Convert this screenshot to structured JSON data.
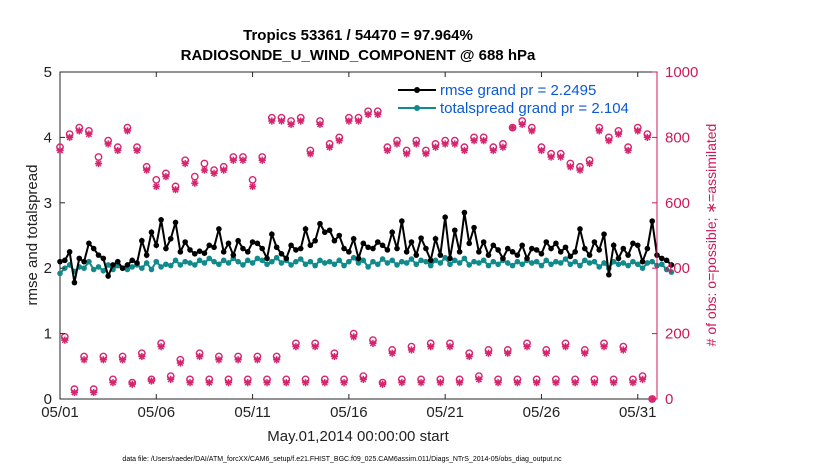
{
  "chart_data": {
    "type": "line",
    "title_line1": "Tropics 53361 / 54470 = 97.964%",
    "title_line2": "RADIOSONDE_U_WIND_COMPONENT @ 688 hPa",
    "xlabel": "May.01,2014 00:00:00 start",
    "ylabel_left": "rmse and totalspread",
    "ylabel_right": "# of obs: o=possible; ∗=assimilated",
    "xlim": [
      0,
      31
    ],
    "ylim_left": [
      0,
      5
    ],
    "ylim_right": [
      0,
      1000
    ],
    "x_tick_values": [
      0,
      5,
      10,
      15,
      20,
      25,
      30
    ],
    "x_tick_labels": [
      "05/01",
      "05/06",
      "05/11",
      "05/16",
      "05/21",
      "05/26",
      "05/31"
    ],
    "y_left_ticks": [
      "0",
      "1",
      "2",
      "3",
      "4",
      "5"
    ],
    "y_right_ticks": [
      "0",
      "200",
      "400",
      "600",
      "800",
      "1000"
    ],
    "colors": {
      "rmse": "#000000",
      "spread": "#108a8a",
      "obs": "#d6246e",
      "legend_text": "#0a5ad6"
    },
    "legend": [
      {
        "name": "rmse grand pr = 2.2495",
        "series": "rmse"
      },
      {
        "name": "totalspread grand pr = 2.104",
        "series": "spread"
      }
    ],
    "step_days": 0.25,
    "series": [
      {
        "name": "rmse",
        "axis": "left",
        "values": [
          2.1,
          2.12,
          2.25,
          1.78,
          2.15,
          2.1,
          2.38,
          2.3,
          2.2,
          2.15,
          1.88,
          2.05,
          2.1,
          2.0,
          2.05,
          2.12,
          2.08,
          2.42,
          2.2,
          2.55,
          2.35,
          2.74,
          2.3,
          2.45,
          2.7,
          2.25,
          2.4,
          2.28,
          2.22,
          2.26,
          2.23,
          2.35,
          2.32,
          2.6,
          2.25,
          2.38,
          2.2,
          2.42,
          2.3,
          2.25,
          2.4,
          2.38,
          2.3,
          2.15,
          2.52,
          2.32,
          2.22,
          2.15,
          2.35,
          2.28,
          2.3,
          2.6,
          2.35,
          2.42,
          2.68,
          2.55,
          2.58,
          2.42,
          2.5,
          2.3,
          2.25,
          2.45,
          2.15,
          2.38,
          2.32,
          2.3,
          2.4,
          2.35,
          2.28,
          2.55,
          2.3,
          2.72,
          2.25,
          2.4,
          2.2,
          2.46,
          2.3,
          2.12,
          2.45,
          2.2,
          2.78,
          2.15,
          2.58,
          2.25,
          2.85,
          2.38,
          2.62,
          2.25,
          2.4,
          2.2,
          2.35,
          2.28,
          2.15,
          2.3,
          2.25,
          2.2,
          2.35,
          2.15,
          2.3,
          2.28,
          2.22,
          2.4,
          2.3,
          2.38,
          2.25,
          2.32,
          2.18,
          2.25,
          2.6,
          2.3,
          2.2,
          2.4,
          2.28,
          2.52,
          1.9,
          2.35,
          2.15,
          2.3,
          2.2,
          2.38,
          2.35,
          2.1,
          2.3,
          2.72,
          2.2,
          2.15,
          2.12,
          2.05
        ]
      },
      {
        "name": "totalspread",
        "axis": "left",
        "values": [
          1.92,
          2.0,
          2.05,
          1.95,
          2.02,
          2.0,
          2.1,
          1.98,
          2.02,
          1.96,
          2.05,
          1.98,
          2.04,
          2.0,
          1.98,
          2.02,
          2.05,
          2.0,
          2.08,
          1.98,
          2.1,
          2.02,
          2.06,
          2.04,
          2.12,
          2.05,
          2.1,
          2.08,
          2.05,
          2.12,
          2.08,
          2.15,
          2.1,
          2.06,
          2.12,
          2.08,
          2.15,
          2.1,
          2.05,
          2.12,
          2.08,
          2.15,
          2.12,
          2.06,
          2.1,
          2.16,
          2.08,
          2.12,
          2.05,
          2.1,
          2.14,
          2.06,
          2.1,
          2.04,
          2.12,
          2.08,
          2.1,
          2.06,
          2.12,
          2.04,
          2.1,
          2.16,
          2.08,
          2.12,
          2.02,
          2.1,
          2.06,
          2.14,
          2.08,
          2.12,
          2.05,
          2.1,
          2.08,
          2.14,
          2.06,
          2.12,
          2.1,
          2.04,
          2.12,
          2.08,
          2.16,
          2.06,
          2.12,
          2.08,
          2.15,
          2.05,
          2.1,
          2.08,
          2.12,
          2.04,
          2.1,
          2.06,
          2.12,
          2.08,
          2.04,
          2.1,
          2.06,
          2.12,
          2.08,
          2.1,
          2.04,
          2.12,
          2.06,
          2.1,
          2.08,
          2.14,
          2.06,
          2.1,
          2.04,
          2.12,
          2.08,
          2.1,
          2.02,
          2.08,
          2.0,
          2.1,
          2.06,
          2.08,
          2.04,
          2.1,
          2.06,
          2.0,
          2.08,
          2.1,
          2.04,
          2.06,
          1.98,
          1.94
        ]
      }
    ],
    "obs_high": {
      "x": [
        0,
        0.5,
        1,
        1.5,
        2,
        2.5,
        3,
        3.5,
        4,
        4.5,
        5,
        5.5,
        6,
        6.5,
        7,
        7.5,
        8,
        8.5,
        9,
        9.5,
        10,
        10.5,
        11,
        11.5,
        12,
        12.5,
        13,
        13.5,
        14,
        14.5,
        15,
        15.5,
        16,
        16.5,
        17,
        17.5,
        18,
        18.5,
        19,
        19.5,
        20,
        20.5,
        21,
        21.5,
        22,
        22.5,
        23,
        23.5,
        24,
        24.5,
        25,
        25.5,
        26,
        26.5,
        27,
        27.5,
        28,
        28.5,
        29,
        29.5,
        30,
        30.5
      ],
      "possible": [
        770,
        810,
        830,
        820,
        740,
        790,
        770,
        830,
        770,
        710,
        670,
        690,
        650,
        730,
        680,
        720,
        700,
        710,
        740,
        740,
        670,
        740,
        860,
        860,
        850,
        860,
        760,
        850,
        780,
        800,
        860,
        860,
        880,
        880,
        770,
        790,
        760,
        790,
        760,
        780,
        790,
        790,
        770,
        800,
        800,
        770,
        780,
        830,
        850,
        830,
        770,
        750,
        750,
        720,
        710,
        730,
        830,
        800,
        820,
        770,
        830,
        810
      ],
      "assimilated": [
        760,
        800,
        820,
        810,
        720,
        780,
        760,
        820,
        760,
        700,
        650,
        680,
        640,
        720,
        660,
        700,
        690,
        700,
        730,
        730,
        650,
        730,
        850,
        850,
        840,
        850,
        750,
        840,
        770,
        790,
        850,
        850,
        870,
        870,
        760,
        780,
        750,
        780,
        750,
        770,
        780,
        780,
        760,
        790,
        790,
        760,
        770,
        830,
        840,
        820,
        760,
        740,
        740,
        710,
        700,
        720,
        820,
        790,
        810,
        760,
        820,
        800
      ]
    },
    "obs_low": {
      "x": [
        0.25,
        0.75,
        1.25,
        1.75,
        2.25,
        2.75,
        3.25,
        3.75,
        4.25,
        4.75,
        5.25,
        5.75,
        6.25,
        6.75,
        7.25,
        7.75,
        8.25,
        8.75,
        9.25,
        9.75,
        10.25,
        10.75,
        11.25,
        11.75,
        12.25,
        12.75,
        13.25,
        13.75,
        14.25,
        14.75,
        15.25,
        15.75,
        16.25,
        16.75,
        17.25,
        17.75,
        18.25,
        18.75,
        19.25,
        19.75,
        20.25,
        20.75,
        21.25,
        21.75,
        22.25,
        22.75,
        23.25,
        23.75,
        24.25,
        24.75,
        25.25,
        25.75,
        26.25,
        26.75,
        27.25,
        27.75,
        28.25,
        28.75,
        29.25,
        29.75,
        30.25,
        30.75
      ],
      "possible": [
        190,
        30,
        130,
        30,
        130,
        60,
        130,
        50,
        140,
        60,
        170,
        70,
        120,
        60,
        140,
        60,
        130,
        60,
        130,
        60,
        130,
        60,
        130,
        60,
        170,
        60,
        170,
        60,
        140,
        60,
        200,
        70,
        180,
        50,
        150,
        60,
        160,
        60,
        170,
        60,
        170,
        60,
        140,
        70,
        150,
        60,
        150,
        60,
        170,
        60,
        150,
        60,
        170,
        60,
        150,
        60,
        170,
        60,
        160,
        60,
        70,
        0
      ],
      "assimilated": [
        180,
        20,
        120,
        20,
        120,
        50,
        120,
        45,
        130,
        55,
        160,
        60,
        110,
        50,
        130,
        50,
        120,
        50,
        120,
        50,
        120,
        50,
        120,
        50,
        160,
        50,
        160,
        50,
        130,
        50,
        190,
        60,
        170,
        45,
        140,
        50,
        150,
        50,
        160,
        50,
        160,
        50,
        130,
        60,
        140,
        50,
        140,
        50,
        160,
        50,
        140,
        50,
        160,
        50,
        140,
        50,
        160,
        50,
        150,
        50,
        60,
        0
      ]
    }
  },
  "footnote": "data file: /Users/raeder/DAI/ATM_forcXX/CAM6_setup/f.e21.FHIST_BGC.f09_025.CAM6assim.011/Diags_NTrS_2014-05/obs_diag_output.nc"
}
